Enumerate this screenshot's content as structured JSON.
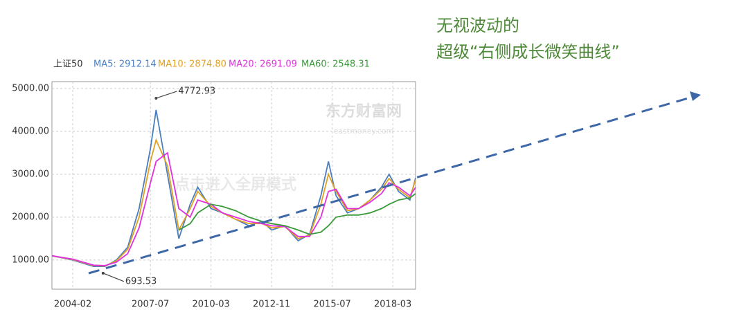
{
  "chart_data": {
    "type": "line",
    "title": "无视波动的",
    "subtitle": "超级“右侧成长微笑曲线”",
    "index_name": "上证50",
    "watermark": [
      "东方财富网",
      "eastmoney.com",
      "点击进入全屏模式"
    ],
    "x": [
      "2003-03",
      "2004-02",
      "2005-01",
      "2005-07",
      "2006-01",
      "2006-07",
      "2007-01",
      "2007-07",
      "2007-10",
      "2008-04",
      "2008-10",
      "2009-04",
      "2009-08",
      "2010-03",
      "2010-09",
      "2011-04",
      "2011-11",
      "2012-06",
      "2012-11",
      "2013-06",
      "2014-01",
      "2014-07",
      "2015-01",
      "2015-05",
      "2015-09",
      "2016-03",
      "2016-09",
      "2017-03",
      "2017-09",
      "2018-01",
      "2018-06",
      "2018-12",
      "2019-03"
    ],
    "series": [
      {
        "name": "MA5: 2912.14",
        "color": "#4a7ebf",
        "values": [
          1100,
          1000,
          850,
          850,
          1000,
          1300,
          2200,
          3600,
          4500,
          3000,
          1500,
          2300,
          2700,
          2200,
          2100,
          1950,
          1800,
          1900,
          1700,
          1800,
          1450,
          1600,
          2500,
          3300,
          2500,
          2100,
          2200,
          2400,
          2700,
          3000,
          2600,
          2400,
          2912
        ]
      },
      {
        "name": "MA10: 2874.80",
        "color": "#e0a020",
        "values": [
          1100,
          1010,
          870,
          860,
          980,
          1250,
          2000,
          3300,
          3800,
          3200,
          1700,
          2200,
          2600,
          2250,
          2100,
          1950,
          1850,
          1850,
          1750,
          1780,
          1500,
          1580,
          2300,
          3000,
          2600,
          2150,
          2200,
          2400,
          2650,
          2900,
          2650,
          2450,
          2875
        ]
      },
      {
        "name": "MA20: 2691.09",
        "color": "#e030e0",
        "values": [
          1100,
          1020,
          880,
          870,
          950,
          1150,
          1750,
          2800,
          3300,
          3500,
          2200,
          2000,
          2400,
          2300,
          2100,
          2000,
          1900,
          1850,
          1800,
          1780,
          1550,
          1550,
          2000,
          2600,
          2650,
          2200,
          2200,
          2350,
          2550,
          2800,
          2700,
          2500,
          2691
        ]
      },
      {
        "name": "MA60: 2548.31",
        "color": "#3a9a3a",
        "values": [
          null,
          null,
          null,
          null,
          null,
          null,
          null,
          null,
          null,
          null,
          1700,
          1850,
          2100,
          2300,
          2250,
          2150,
          2000,
          1900,
          1850,
          1800,
          1700,
          1600,
          1650,
          1800,
          2000,
          2050,
          2050,
          2100,
          2200,
          2300,
          2400,
          2450,
          2548
        ]
      }
    ],
    "annotations": [
      {
        "x": "2007-10",
        "value": 4772.93
      },
      {
        "x": "2005-06",
        "value": 693.53
      }
    ],
    "xlim": [
      "2003-03",
      "2019-03"
    ],
    "xticks": [
      "2004-02",
      "2007-07",
      "2010-03",
      "2012-11",
      "2015-07",
      "2018-03"
    ],
    "ylim": [
      320,
      5160
    ],
    "yticks": [
      {
        "value": 1000,
        "label": "1000.00"
      },
      {
        "value": 2000,
        "label": "2000.00"
      },
      {
        "value": 3000,
        "label": "3000.00"
      },
      {
        "value": 4000,
        "label": "4000.00"
      },
      {
        "value": 5000,
        "label": "5000.00"
      }
    ],
    "grid": true
  }
}
